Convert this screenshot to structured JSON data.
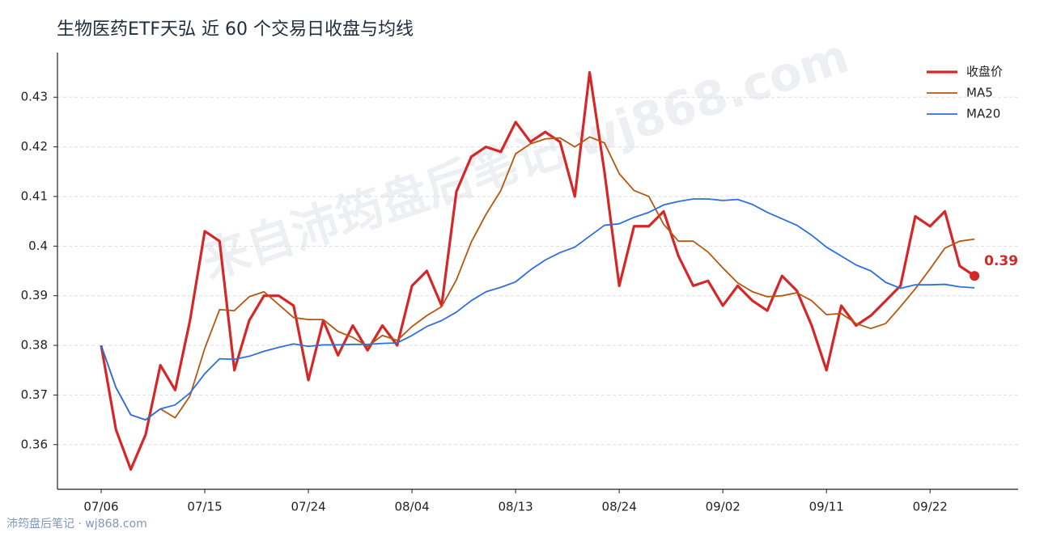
{
  "chart_data": {
    "type": "line",
    "title": "生物医药ETF天弘 近 60 个交易日收盘与均线",
    "watermark": "来自沛筠盘后笔记 wj868.com",
    "footer": "沛筠盘后笔记 · wj868.com",
    "categories": [
      "07/06",
      null,
      null,
      null,
      null,
      null,
      null,
      "07/15",
      null,
      null,
      null,
      null,
      null,
      null,
      "07/24",
      null,
      null,
      null,
      null,
      null,
      null,
      "08/04",
      null,
      null,
      null,
      null,
      null,
      null,
      "08/13",
      null,
      null,
      null,
      null,
      null,
      null,
      "08/24",
      null,
      null,
      null,
      null,
      null,
      null,
      "09/02",
      null,
      null,
      null,
      null,
      null,
      null,
      "09/11",
      null,
      null,
      null,
      null,
      null,
      null,
      "09/22",
      null,
      null,
      null
    ],
    "series": [
      {
        "name": "收盘价",
        "color": "#d62728",
        "values": [
          0.38,
          0.363,
          0.355,
          0.362,
          0.376,
          0.371,
          0.385,
          0.403,
          0.401,
          0.375,
          0.385,
          0.39,
          0.39,
          0.388,
          0.373,
          0.385,
          0.378,
          0.384,
          0.379,
          0.384,
          0.38,
          0.392,
          0.395,
          0.388,
          0.411,
          0.418,
          0.42,
          0.419,
          0.425,
          0.421,
          0.423,
          0.421,
          0.41,
          0.435,
          0.415,
          0.392,
          0.404,
          0.404,
          0.407,
          0.398,
          0.392,
          0.393,
          0.388,
          0.392,
          0.389,
          0.387,
          0.394,
          0.391,
          0.384,
          0.375,
          0.388,
          0.384,
          0.386,
          0.389,
          0.392,
          0.406,
          0.404,
          0.407,
          0.396,
          0.394
        ]
      },
      {
        "name": "MA5",
        "color": "#b5570f",
        "values": [
          0.38,
          0.3715,
          0.366,
          0.365,
          0.3672,
          0.3654,
          0.3698,
          0.3794,
          0.3872,
          0.387,
          0.3898,
          0.3908,
          0.3882,
          0.3856,
          0.3852,
          0.3852,
          0.3828,
          0.3816,
          0.3798,
          0.382,
          0.381,
          0.3838,
          0.386,
          0.3878,
          0.3932,
          0.4008,
          0.4064,
          0.4112,
          0.4186,
          0.4206,
          0.4216,
          0.4218,
          0.42,
          0.422,
          0.4208,
          0.4146,
          0.4112,
          0.41,
          0.4044,
          0.401,
          0.401,
          0.3988,
          0.3956,
          0.3926,
          0.3908,
          0.3898,
          0.39,
          0.3906,
          0.389,
          0.3862,
          0.3864,
          0.3844,
          0.3834,
          0.3844,
          0.3878,
          0.3914,
          0.3954,
          0.3996,
          0.401,
          0.4014
        ]
      },
      {
        "name": "MA20",
        "color": "#2e6fe0",
        "values": [
          0.38,
          0.3715,
          0.366,
          0.365,
          0.3672,
          0.368,
          0.3704,
          0.3743,
          0.3773,
          0.3772,
          0.3778,
          0.3788,
          0.3796,
          0.3803,
          0.3798,
          0.3801,
          0.3801,
          0.3802,
          0.3802,
          0.3804,
          0.3805,
          0.382,
          0.3838,
          0.385,
          0.3867,
          0.389,
          0.3908,
          0.3917,
          0.3928,
          0.3952,
          0.3972,
          0.3987,
          0.3998,
          0.402,
          0.4042,
          0.4045,
          0.4058,
          0.4068,
          0.4083,
          0.409,
          0.4095,
          0.4095,
          0.4092,
          0.4094,
          0.4084,
          0.4068,
          0.4055,
          0.4042,
          0.4022,
          0.3998,
          0.398,
          0.3962,
          0.395,
          0.3927,
          0.3915,
          0.3922,
          0.3922,
          0.3923,
          0.3918,
          0.3916
        ]
      }
    ],
    "last_label": "0.39",
    "ylim": [
      0.351,
      0.439
    ],
    "yticks": [
      0.36,
      0.37,
      0.38,
      0.39,
      0.4,
      0.41,
      0.42,
      0.43
    ],
    "grid": true,
    "legend": "upper right"
  }
}
